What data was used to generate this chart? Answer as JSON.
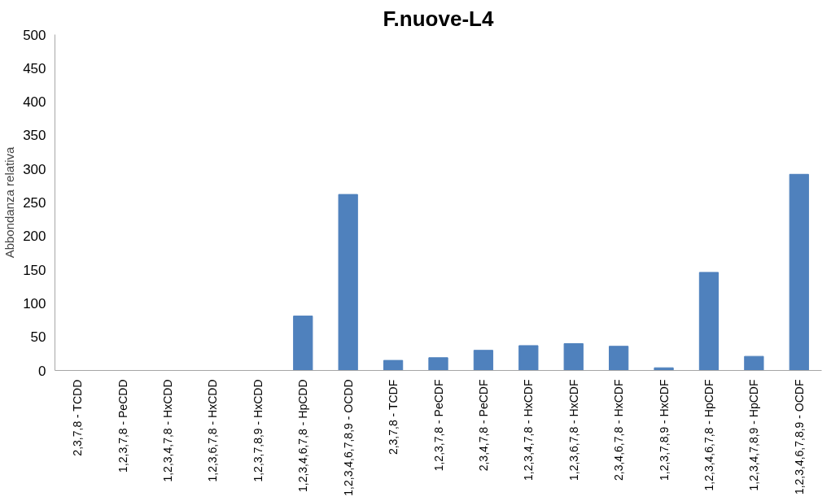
{
  "chart_data": {
    "type": "bar",
    "title": "F.nuove-L4",
    "ylabel": "Abbondanza relativa",
    "categories": [
      "2,3,7,8 - TCDD",
      "1,2,3,7,8 - PeCDD",
      "1,2,3,4,7,8 - HxCDD",
      "1,2,3,6,7,8 - HxCDD",
      "1,2,3,7,8,9 - HxCDD",
      "1,2,3,4,6,7,8 - HpCDD",
      "1,2,3,4,6,7,8,9 - OCDD",
      "2,3,7,8 - TCDF",
      "1,2,3,7,8 - PeCDF",
      "2,3,4,7,8 - PeCDF",
      "1,2,3,4,7,8 - HxCDF",
      "1,2,3,6,7,8 - HxCDF",
      "2,3,4,6,7,8 - HxCDF",
      "1,2,3,7,8,9 - HxCDF",
      "1,2,3,4,6,7,8 - HpCDF",
      "1,2,3,4,7,8,9 - HpCDF",
      "1,2,3,4,6,7,8,9 - OCDF"
    ],
    "values": [
      0,
      0,
      0,
      0,
      0,
      81,
      262,
      15,
      19,
      30,
      37,
      40,
      36,
      4,
      146,
      21,
      292
    ],
    "color": "#4f81bd",
    "ylim": [
      0,
      500
    ],
    "yticks": [
      0,
      50,
      100,
      150,
      200,
      250,
      300,
      350,
      400,
      450,
      500
    ]
  }
}
